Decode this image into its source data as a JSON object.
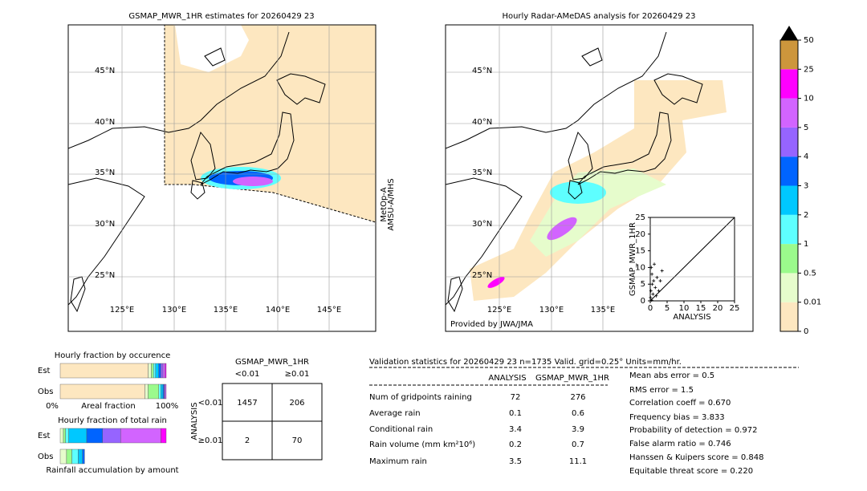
{
  "left_map": {
    "title": "GSMAP_MWR_1HR estimates for 20260429 23",
    "lat_labels": [
      "45°N",
      "40°N",
      "35°N",
      "30°N",
      "25°N"
    ],
    "lon_labels": [
      "125°E",
      "130°E",
      "135°E",
      "140°E",
      "145°E"
    ],
    "side_note": [
      "MetOp-A",
      "AMSU-A/MHS"
    ]
  },
  "right_map": {
    "title": "Hourly Radar-AMeDAS analysis for 20260429 23",
    "lat_labels": [
      "45°N",
      "40°N",
      "35°N",
      "30°N",
      "25°N"
    ],
    "lon_labels": [
      "125°E",
      "130°E",
      "135°E"
    ],
    "credit": "Provided by JWA/JMA"
  },
  "inset_scatter": {
    "xlabel": "ANALYSIS",
    "ylabel": "GSMAP_MWR_1HR",
    "xlim": [
      0,
      25
    ],
    "ylim": [
      0,
      25
    ],
    "xticks": [
      0,
      5,
      10,
      15,
      20,
      25
    ],
    "yticks": [
      0,
      5,
      10,
      15,
      20,
      25
    ],
    "points": [
      [
        0.2,
        3
      ],
      [
        0.5,
        8
      ],
      [
        0.3,
        10
      ],
      [
        1,
        6
      ],
      [
        1.5,
        4
      ],
      [
        0.8,
        2
      ],
      [
        2,
        7
      ],
      [
        3,
        6
      ],
      [
        3.5,
        9
      ],
      [
        0.1,
        1
      ],
      [
        0.6,
        5
      ],
      [
        1.2,
        11
      ],
      [
        2.5,
        3
      ],
      [
        0.4,
        0.2
      ],
      [
        1.8,
        1.5
      ]
    ]
  },
  "colorbar": {
    "levels": [
      0,
      0.01,
      0.5,
      1,
      2,
      3,
      4,
      5,
      10,
      25,
      50
    ],
    "colors": [
      "#fde7c0",
      "#e6fccc",
      "#9bfa8c",
      "#5effff",
      "#00c8ff",
      "#0064ff",
      "#9664ff",
      "#d264ff",
      "#ff00ff",
      "#cd963c"
    ],
    "extend_color": "#000000"
  },
  "fraction": {
    "occurrence_title": "Hourly fraction by occurence",
    "row_labels": [
      "Est",
      "Obs"
    ],
    "axis_labels": [
      "0%",
      "Areal fraction",
      "100%"
    ],
    "occurrence": {
      "est": [
        83,
        3,
        2,
        2,
        3,
        2,
        2,
        2,
        1,
        0
      ],
      "obs": [
        80,
        3,
        10,
        2,
        2,
        1,
        1,
        1,
        0,
        0
      ]
    },
    "total_title": "Hourly fraction of total rain",
    "total": {
      "est": [
        0,
        3,
        2,
        3,
        17,
        15,
        17,
        38,
        5,
        0
      ],
      "obs": [
        0,
        6,
        5,
        6,
        4,
        2,
        0,
        0,
        0,
        0
      ]
    },
    "accum_title": "Rainfall accumulation by amount"
  },
  "contingency": {
    "title": "GSMAP_MWR_1HR",
    "col_labels": [
      "<0.01",
      "≥0.01"
    ],
    "row_axis": "ANALYSIS",
    "row_labels": [
      "<0.01",
      "≥0.01"
    ],
    "cells": [
      [
        1457,
        206
      ],
      [
        2,
        70
      ]
    ]
  },
  "validation": {
    "header": "Validation statistics for 20260429 23  n=1735 Valid. grid=0.25° Units=mm/hr.",
    "columns": [
      "ANALYSIS",
      "GSMAP_MWR_1HR"
    ],
    "rows": [
      {
        "label": "Num of gridpoints raining",
        "values": [
          72,
          276
        ]
      },
      {
        "label": "Average rain",
        "values": [
          0.1,
          0.6
        ]
      },
      {
        "label": "Conditional rain",
        "values": [
          3.4,
          3.9
        ]
      },
      {
        "label": "Rain volume (mm km²10⁶)",
        "values": [
          0.2,
          0.7
        ]
      },
      {
        "label": "Maximum rain",
        "values": [
          3.5,
          11.1
        ]
      }
    ],
    "scores": [
      "Mean abs error =    0.5",
      "RMS error =    1.5",
      "Correlation coeff =  0.670",
      "Frequency bias =  3.833",
      "Probability of detection =  0.972",
      "False alarm ratio =  0.746",
      "Hanssen & Kuipers score =  0.848",
      "Equitable threat score =  0.220"
    ]
  }
}
